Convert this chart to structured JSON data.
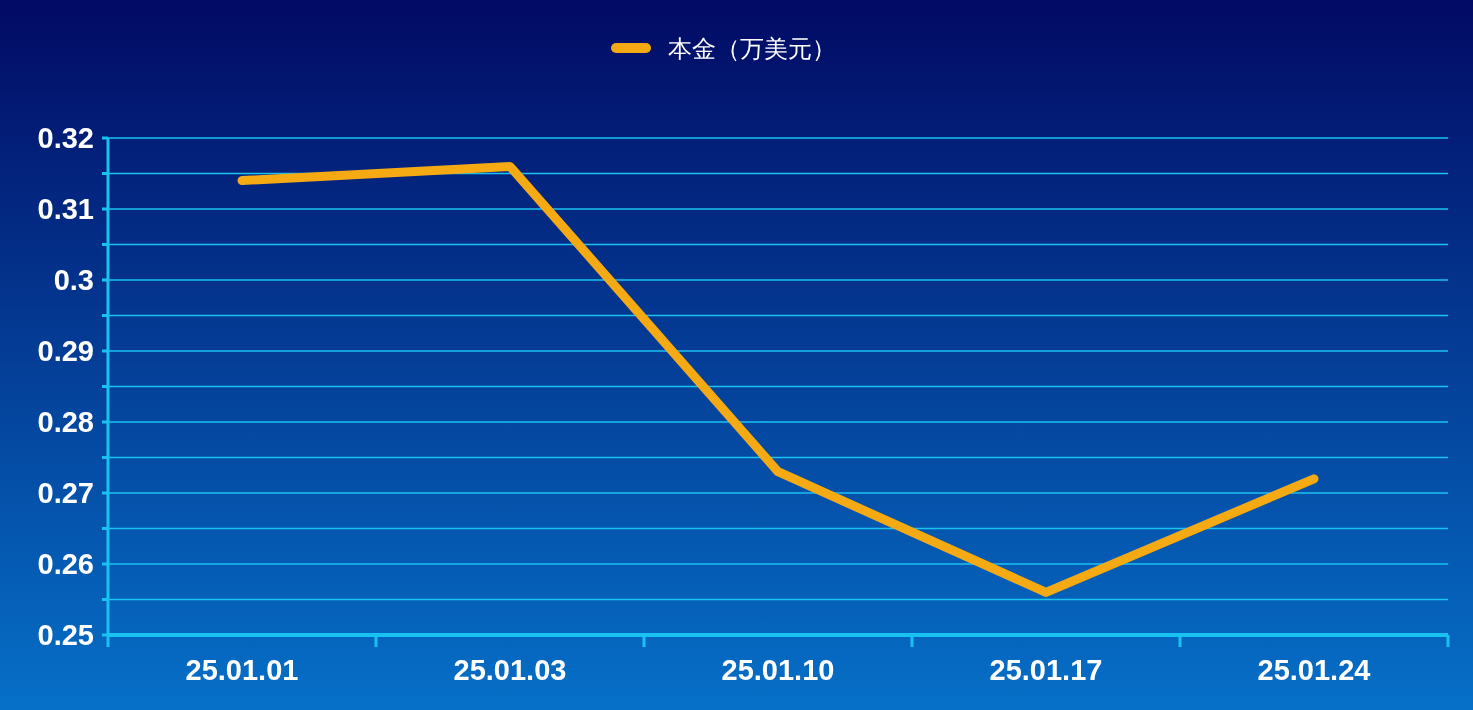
{
  "chart_data": {
    "type": "line",
    "categories": [
      "25.01.01",
      "25.01.03",
      "25.01.10",
      "25.01.17",
      "25.01.24"
    ],
    "series": [
      {
        "name": "本金（万美元）",
        "color": "#f5a912",
        "values": [
          0.314,
          0.316,
          0.273,
          0.256,
          0.272
        ]
      }
    ],
    "ylim": [
      0.25,
      0.32
    ],
    "yticks": [
      0.25,
      {
        "value": 0.255,
        "label": null
      },
      0.26,
      {
        "value": 0.265,
        "label": null
      },
      0.27,
      {
        "value": 0.275,
        "label": null
      },
      0.28,
      {
        "value": 0.285,
        "label": null
      },
      0.29,
      {
        "value": 0.295,
        "label": null
      },
      0.3,
      {
        "value": 0.305,
        "label": null
      },
      0.31,
      {
        "value": 0.315,
        "label": null
      },
      0.32
    ],
    "grid": "y",
    "legend": "top",
    "marker": "none",
    "line_style": "solid"
  }
}
